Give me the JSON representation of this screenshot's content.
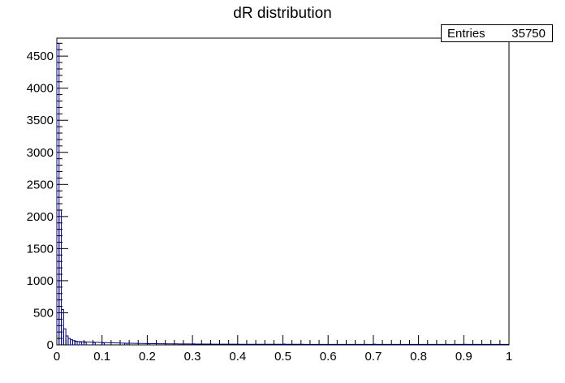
{
  "chart_data": {
    "type": "histogram",
    "title": "dR distribution",
    "xlabel": "",
    "ylabel": "",
    "xlim": [
      0,
      1
    ],
    "ylim": [
      0,
      4780
    ],
    "x_ticks": [
      0,
      0.1,
      0.2,
      0.3,
      0.4,
      0.5,
      0.6,
      0.7,
      0.8,
      0.9,
      1
    ],
    "x_tick_labels": [
      "0",
      "0.1",
      "0.2",
      "0.3",
      "0.4",
      "0.5",
      "0.6",
      "0.7",
      "0.8",
      "0.9",
      "1"
    ],
    "y_ticks": [
      0,
      500,
      1000,
      1500,
      2000,
      2500,
      3000,
      3500,
      4000,
      4500
    ],
    "y_tick_labels": [
      "0",
      "500",
      "1000",
      "1500",
      "2000",
      "2500",
      "3000",
      "3500",
      "4000",
      "4500"
    ],
    "bin_width": 0.005,
    "bins_x_start": [
      0.0,
      0.005,
      0.01,
      0.015,
      0.02,
      0.025,
      0.03,
      0.035,
      0.04,
      0.05,
      0.06,
      0.08,
      0.1,
      0.15,
      0.2,
      0.3,
      0.5,
      0.7,
      0.9
    ],
    "bins_y": [
      4700,
      2100,
      550,
      250,
      140,
      100,
      80,
      65,
      55,
      45,
      40,
      35,
      30,
      25,
      20,
      15,
      12,
      10,
      8
    ],
    "line_color": "#00007f",
    "stats": {
      "label": "Entries",
      "value": "35750"
    }
  }
}
